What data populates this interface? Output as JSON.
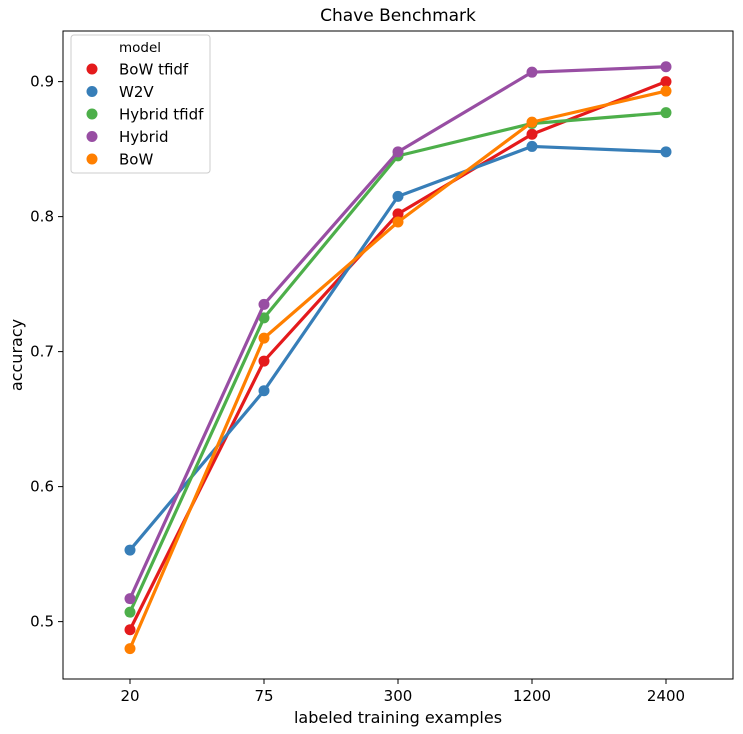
{
  "chart_data": {
    "type": "line",
    "title": "Chave Benchmark",
    "xlabel": "labeled training examples",
    "ylabel": "accuracy",
    "categories": [
      "20",
      "75",
      "300",
      "1200",
      "2400"
    ],
    "ylim": [
      0.4575,
      0.9375
    ],
    "yticks": [
      0.5,
      0.6,
      0.7,
      0.8,
      0.9
    ],
    "ytick_labels": [
      "0.5",
      "0.6",
      "0.7",
      "0.8",
      "0.9"
    ],
    "grid": false,
    "legend": {
      "title": "model",
      "position": "top-left"
    },
    "series": [
      {
        "name": "BoW tfidf",
        "color": "#e41a1c",
        "values": [
          0.494,
          0.693,
          0.802,
          0.861,
          0.9
        ]
      },
      {
        "name": "W2V",
        "color": "#377eb8",
        "values": [
          0.553,
          0.671,
          0.815,
          0.852,
          0.848
        ]
      },
      {
        "name": "Hybrid tfidf",
        "color": "#4daf4a",
        "values": [
          0.507,
          0.725,
          0.845,
          0.869,
          0.877
        ]
      },
      {
        "name": "Hybrid",
        "color": "#984ea3",
        "values": [
          0.517,
          0.735,
          0.848,
          0.907,
          0.911
        ]
      },
      {
        "name": "BoW",
        "color": "#ff7f00",
        "values": [
          0.48,
          0.71,
          0.796,
          0.87,
          0.893
        ]
      }
    ]
  }
}
